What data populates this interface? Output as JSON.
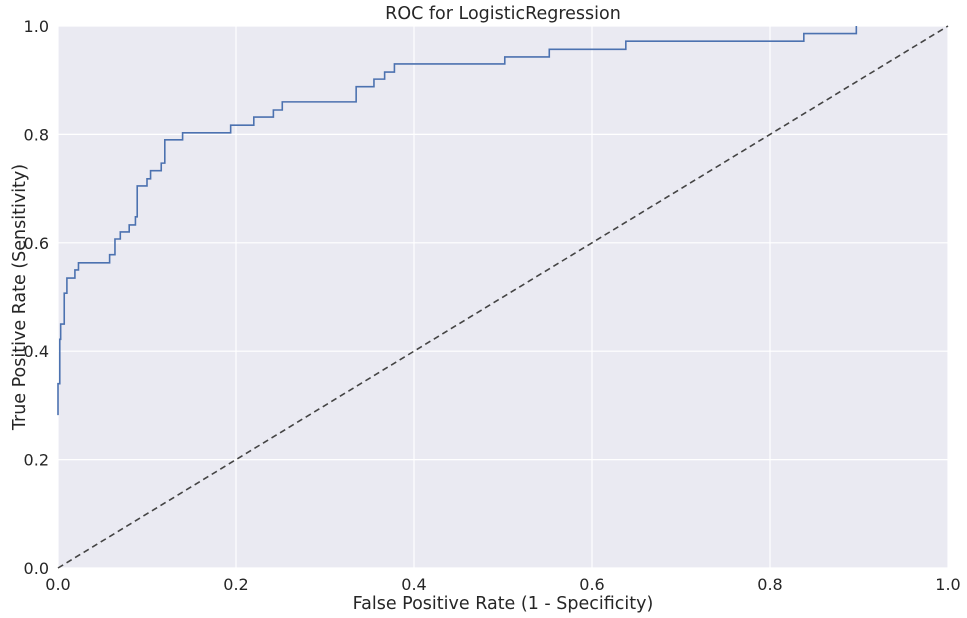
{
  "chart_data": {
    "type": "line",
    "title": "ROC for LogisticRegression",
    "xlabel": "False Positive Rate (1 - Specificity)",
    "ylabel": "True Positive Rate (Sensitivity)",
    "xlim": [
      0,
      1
    ],
    "ylim": [
      0,
      1
    ],
    "xticks": [
      "0.0",
      "0.2",
      "0.4",
      "0.6",
      "0.8",
      "1.0"
    ],
    "yticks": [
      "0.0",
      "0.2",
      "0.4",
      "0.6",
      "0.8",
      "1.0"
    ],
    "grid": true,
    "series": [
      {
        "style": "solid",
        "color": "#4c72b0",
        "x": [
          0.0,
          0.0,
          0.002,
          0.002,
          0.003,
          0.003,
          0.007,
          0.007,
          0.01,
          0.01,
          0.019,
          0.019,
          0.023,
          0.023,
          0.058,
          0.058,
          0.064,
          0.064,
          0.07,
          0.07,
          0.08,
          0.08,
          0.087,
          0.087,
          0.089,
          0.089,
          0.1,
          0.1,
          0.104,
          0.104,
          0.116,
          0.116,
          0.12,
          0.12,
          0.14,
          0.14,
          0.194,
          0.194,
          0.22,
          0.22,
          0.242,
          0.242,
          0.252,
          0.252,
          0.335,
          0.335,
          0.355,
          0.355,
          0.367,
          0.367,
          0.378,
          0.378,
          0.502,
          0.502,
          0.552,
          0.552,
          0.638,
          0.638,
          0.838,
          0.838,
          0.897,
          0.897
        ],
        "y": [
          0.282,
          0.34,
          0.34,
          0.422,
          0.422,
          0.45,
          0.45,
          0.507,
          0.507,
          0.535,
          0.535,
          0.55,
          0.55,
          0.563,
          0.563,
          0.578,
          0.578,
          0.607,
          0.607,
          0.62,
          0.62,
          0.633,
          0.633,
          0.648,
          0.648,
          0.705,
          0.705,
          0.718,
          0.718,
          0.733,
          0.733,
          0.747,
          0.747,
          0.79,
          0.79,
          0.803,
          0.803,
          0.817,
          0.817,
          0.832,
          0.832,
          0.845,
          0.845,
          0.86,
          0.86,
          0.888,
          0.888,
          0.902,
          0.902,
          0.915,
          0.915,
          0.93,
          0.93,
          0.943,
          0.943,
          0.957,
          0.957,
          0.972,
          0.972,
          0.986,
          0.986,
          1.0
        ]
      },
      {
        "style": "dashed",
        "color": "#444444",
        "x": [
          0,
          1
        ],
        "y": [
          0,
          1
        ]
      }
    ]
  },
  "style": {
    "plot_background": "#eaeaf2",
    "grid_color": "#ffffff",
    "text_color": "#262626"
  }
}
